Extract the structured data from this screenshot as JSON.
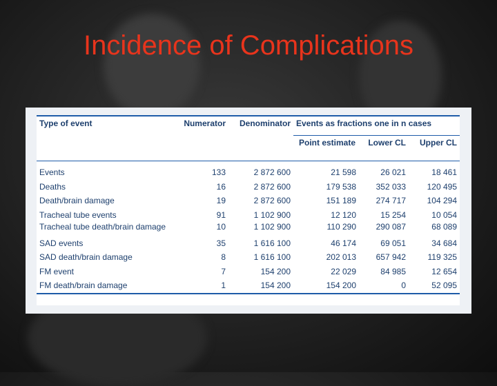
{
  "title": "Incidence of Complications",
  "table": {
    "headers": {
      "type": "Type of event",
      "numerator": "Numerator",
      "denominator": "Denominator",
      "events_group": "Events as fractions one in n cases",
      "point": "Point estimate",
      "lower": "Lower CL",
      "upper": "Upper CL"
    },
    "rows": [
      {
        "type": "Events",
        "numerator": "133",
        "denominator": "2 872 600",
        "point": "21 598",
        "lower": "26 021",
        "upper": "18 461"
      },
      {
        "type": "Deaths",
        "numerator": "16",
        "denominator": "2 872 600",
        "point": "179 538",
        "lower": "352 033",
        "upper": "120 495"
      },
      {
        "type": "Death/brain damage",
        "numerator": "19",
        "denominator": "2 872 600",
        "point": "151 189",
        "lower": "274 717",
        "upper": "104 294"
      },
      {
        "type": "Tracheal tube events",
        "numerator": "91",
        "denominator": "1 102 900",
        "point": "12 120",
        "lower": "15 254",
        "upper": "10 054"
      },
      {
        "type": "Tracheal tube death/brain damage",
        "numerator": "10",
        "denominator": "1 102 900",
        "point": "110 290",
        "lower": "290 087",
        "upper": "68 089"
      },
      {
        "type": "SAD events",
        "numerator": "35",
        "denominator": "1 616 100",
        "point": "46 174",
        "lower": "69 051",
        "upper": "34 684"
      },
      {
        "type": "SAD death/brain damage",
        "numerator": "8",
        "denominator": "1 616 100",
        "point": "202 013",
        "lower": "657 942",
        "upper": "119 325"
      },
      {
        "type": "FM event",
        "numerator": "7",
        "denominator": "154 200",
        "point": "22 029",
        "lower": "84 985",
        "upper": "12 654"
      },
      {
        "type": "FM death/brain damage",
        "numerator": "1",
        "denominator": "154 200",
        "point": "154 200",
        "lower": "0",
        "upper": "52 095"
      }
    ]
  }
}
